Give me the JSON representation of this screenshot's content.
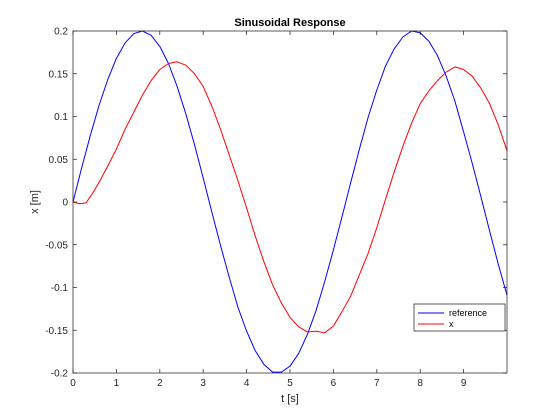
{
  "chart_data": {
    "type": "line",
    "title": "Sinusoidal Response",
    "xlabel": "t [s]",
    "ylabel": "x [m]",
    "xlim": [
      0,
      10
    ],
    "ylim": [
      -0.2,
      0.2
    ],
    "xticks": [
      0,
      1,
      2,
      3,
      4,
      5,
      6,
      7,
      8,
      9
    ],
    "xtick_labels": [
      "0",
      "1",
      "2",
      "3",
      "4",
      "5",
      "6",
      "7",
      "8",
      "9"
    ],
    "yticks": [
      -0.2,
      -0.15,
      -0.1,
      -0.05,
      0,
      0.05,
      0.1,
      0.15,
      0.2
    ],
    "ytick_labels": [
      "-0.2",
      "-0.15",
      "-0.1",
      "-0.05",
      "0",
      "0.05",
      "0.1",
      "0.15",
      "0.2"
    ],
    "grid": false,
    "legend_position": "bottom-right",
    "series": [
      {
        "name": "reference",
        "color": "#0000ff",
        "x": [
          0,
          0.2,
          0.4,
          0.6,
          0.8,
          1.0,
          1.2,
          1.4,
          1.6,
          1.8,
          2.0,
          2.2,
          2.4,
          2.6,
          2.8,
          3.0,
          3.2,
          3.4,
          3.6,
          3.8,
          4.0,
          4.2,
          4.4,
          4.6,
          4.8,
          5.0,
          5.2,
          5.4,
          5.6,
          5.8,
          6.0,
          6.2,
          6.4,
          6.6,
          6.8,
          7.0,
          7.2,
          7.4,
          7.6,
          7.8,
          8.0,
          8.2,
          8.4,
          8.6,
          8.8,
          9.0,
          9.2,
          9.4,
          9.6,
          9.8,
          10.0
        ],
        "y": [
          0,
          0.04,
          0.078,
          0.113,
          0.143,
          0.168,
          0.186,
          0.197,
          0.2,
          0.195,
          0.182,
          0.162,
          0.135,
          0.103,
          0.067,
          0.028,
          -0.012,
          -0.051,
          -0.088,
          -0.123,
          -0.151,
          -0.174,
          -0.19,
          -0.199,
          -0.199,
          -0.192,
          -0.177,
          -0.155,
          -0.127,
          -0.093,
          -0.056,
          -0.017,
          0.023,
          0.062,
          0.099,
          0.131,
          0.159,
          0.179,
          0.193,
          0.2,
          0.198,
          0.188,
          0.171,
          0.147,
          0.118,
          0.082,
          0.045,
          0.006,
          -0.034,
          -0.073,
          -0.109
        ]
      },
      {
        "name": "x",
        "color": "#ff0000",
        "x": [
          0,
          0.15,
          0.3,
          0.45,
          0.6,
          0.8,
          1.0,
          1.2,
          1.4,
          1.6,
          1.8,
          2.0,
          2.2,
          2.4,
          2.6,
          2.8,
          3.0,
          3.2,
          3.4,
          3.6,
          3.8,
          4.0,
          4.2,
          4.4,
          4.6,
          4.8,
          5.0,
          5.2,
          5.4,
          5.6,
          5.8,
          6.0,
          6.2,
          6.4,
          6.6,
          6.8,
          7.0,
          7.2,
          7.4,
          7.6,
          7.8,
          8.0,
          8.2,
          8.4,
          8.6,
          8.8,
          9.0,
          9.2,
          9.4,
          9.6,
          9.8,
          10.0
        ],
        "y": [
          0,
          -0.002,
          -0.001,
          0.01,
          0.023,
          0.042,
          0.062,
          0.085,
          0.105,
          0.125,
          0.142,
          0.155,
          0.162,
          0.164,
          0.16,
          0.15,
          0.135,
          0.112,
          0.085,
          0.055,
          0.025,
          -0.007,
          -0.04,
          -0.07,
          -0.097,
          -0.118,
          -0.135,
          -0.146,
          -0.152,
          -0.151,
          -0.153,
          -0.145,
          -0.128,
          -0.11,
          -0.085,
          -0.06,
          -0.03,
          0.003,
          0.035,
          0.065,
          0.092,
          0.115,
          0.13,
          0.142,
          0.152,
          0.158,
          0.155,
          0.147,
          0.133,
          0.115,
          0.09,
          0.06
        ]
      }
    ]
  }
}
